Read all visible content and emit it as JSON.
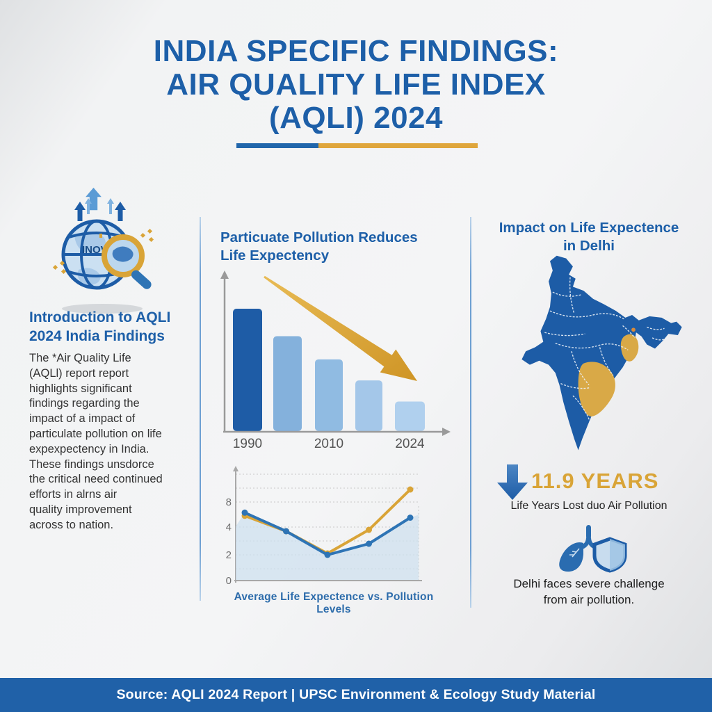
{
  "title": {
    "line1": "INDIA SPECIFIC FINDINGS:",
    "line2": "AIR QUALITY LIFE INDEX",
    "line3": "(AQLI) 2024"
  },
  "left_panel": {
    "icon": "globe-magnifier-icon",
    "globe_text": "INOV",
    "heading": "Introduction to AQLI\n2024 India Findings",
    "body": "The *Air Quality Life\n(AQLl) report report\nhighlights significant\nfindings regarding the\nimpact of a impact of\nparticulate pollution on life\nexpexpectency in India.\nThese findings unsdorce\nthe critical need continued\nefforts in alrns air\nquality improvement\nacross to nation."
  },
  "middle_panel": {
    "heading": "Particuate Pollution Reduces\nLife Expectency",
    "caption": "Average Life Expectence vs. Pollution Levels",
    "trend_annotation": "downward-gold-arrow"
  },
  "right_panel": {
    "heading": "Impact on Life Expectence\nin Delhi",
    "map_icon": "india-map",
    "stat_icon": "down-arrow-icon",
    "stat_value": "11.9 YEARS",
    "stat_label": "Life Years Lost duo Air Pollution",
    "note_icon": "lungs-shield-icon",
    "note": "Delhi faces severe challenge\nfrom air pollution."
  },
  "footer": {
    "text": "Source: AQLI 2024 Report | UPSC Environment & Ecology Study Material"
  },
  "colors": {
    "primary_blue": "#1d5fa8",
    "accent_gold": "#d9a437",
    "footer_bg": "#2061a8",
    "map_blue": "#1d5ca6",
    "map_gold": "#d9a947",
    "line_blue": "#2e74b5",
    "text_dark": "#333333"
  },
  "chart_data": [
    {
      "type": "bar",
      "title": "Particuate Pollution Reduces Life Expectency",
      "categories": [
        "1990",
        "",
        "2010",
        "",
        "2024"
      ],
      "values": [
        5.8,
        4.5,
        3.4,
        2.4,
        1.4
      ],
      "bar_colors": [
        "#1e5ca6",
        "#84b1dc",
        "#90bbe2",
        "#a4c7e9",
        "#b0d0ee"
      ],
      "xlabel": "",
      "ylabel": "",
      "annotation": "gold trend arrow sloping down from upper-left to lower-right",
      "x_tick_labels_shown": [
        "1990",
        "2010",
        "2024"
      ]
    },
    {
      "type": "line",
      "title": "Average Life Expectence vs. Pollution Levels",
      "x": [
        1,
        2,
        3,
        4,
        5
      ],
      "series": [
        {
          "name": "blue-line",
          "color": "#2e74b5",
          "values": [
            6.3,
            3.7,
            2.0,
            2.8,
            5.5
          ]
        },
        {
          "name": "gold-line",
          "color": "#d9a437",
          "values": [
            5.8,
            3.7,
            2.1,
            3.8,
            10.0
          ]
        }
      ],
      "y_ticks": [
        8,
        4,
        2,
        0
      ],
      "ylim": [
        0,
        11
      ],
      "grid": "dotted horizontal gridlines",
      "area_fill": "light blue area under blue series",
      "legend_position": "none"
    }
  ]
}
